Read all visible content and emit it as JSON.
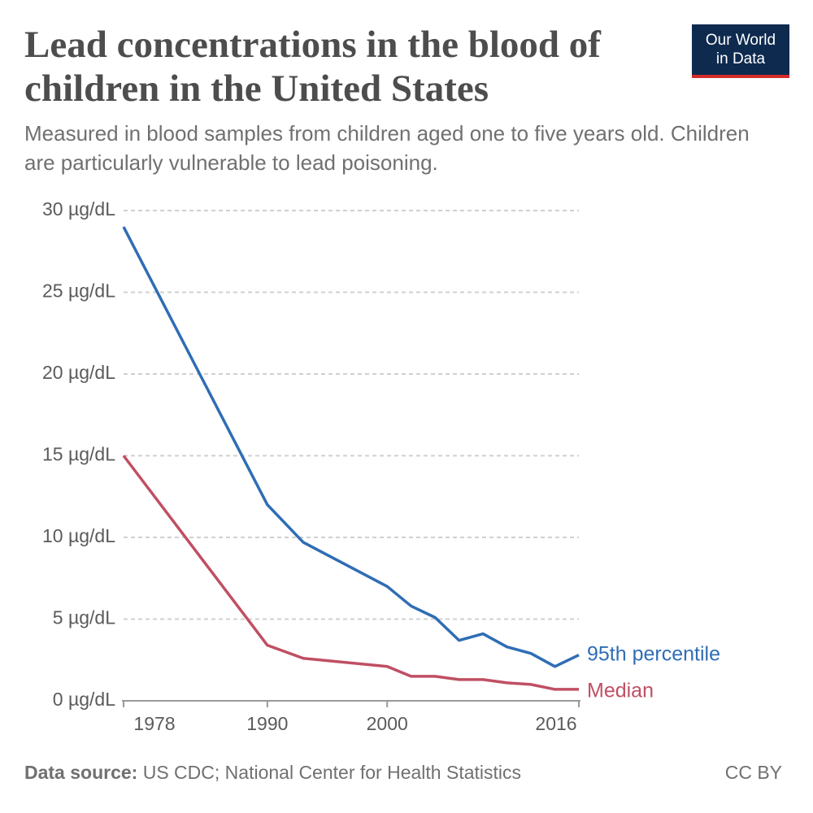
{
  "chart_data": {
    "type": "line",
    "title": "Lead concentrations in the blood of children in the United States",
    "subtitle": "Measured in blood samples from children aged one to five years old. Children are particularly vulnerable to lead poisoning.",
    "logo": [
      "Our World",
      "in Data"
    ],
    "source_label": "Data source:",
    "source": "US CDC; National Center for Health Statistics",
    "license": "CC BY",
    "x": [
      1978,
      1990,
      1993,
      2000,
      2002,
      2004,
      2006,
      2008,
      2010,
      2012,
      2014,
      2016
    ],
    "series": [
      {
        "name": "95th percentile",
        "color": "#2f6db5",
        "values": [
          29,
          12,
          9.7,
          7,
          5.8,
          5.1,
          3.7,
          4.1,
          3.3,
          2.9,
          2.1,
          2.8
        ]
      },
      {
        "name": "Median",
        "color": "#c04f63",
        "values": [
          15,
          3.4,
          2.6,
          2.1,
          1.5,
          1.5,
          1.3,
          1.3,
          1.1,
          1,
          0.7,
          0.7
        ]
      }
    ],
    "xlim": [
      1978,
      2016
    ],
    "xticks": [
      1978,
      1990,
      2000,
      2016
    ],
    "ylim": [
      0,
      30
    ],
    "yticks": [
      {
        "value": 0,
        "label": "0 µg/dL"
      },
      {
        "value": 5,
        "label": "5 µg/dL"
      },
      {
        "value": 10,
        "label": "10 µg/dL"
      },
      {
        "value": 15,
        "label": "15 µg/dL"
      },
      {
        "value": 20,
        "label": "20 µg/dL"
      },
      {
        "value": 25,
        "label": "25 µg/dL"
      },
      {
        "value": 30,
        "label": "30 µg/dL"
      }
    ],
    "grid": true
  }
}
